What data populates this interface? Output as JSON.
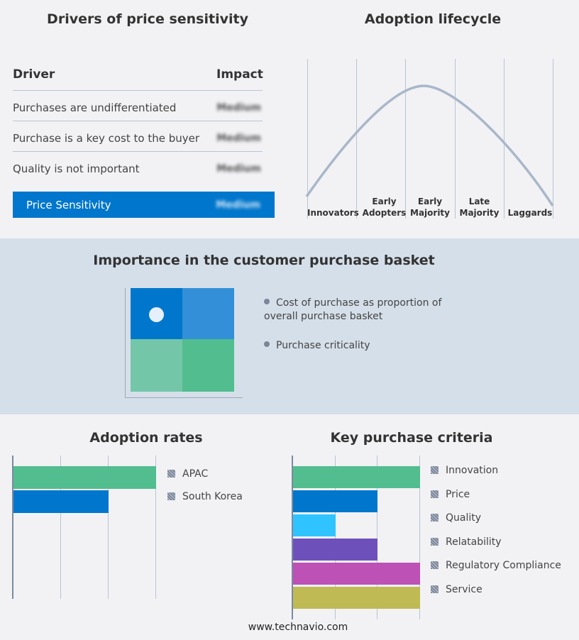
{
  "drivers": {
    "title": "Drivers of price sensitivity",
    "col_driver": "Driver",
    "col_impact": "Impact",
    "rows": [
      {
        "driver": "Purchases are undifferentiated",
        "impact": "Medium"
      },
      {
        "driver": "Purchase is a key cost to the buyer",
        "impact": "Medium"
      },
      {
        "driver": "Quality is not important",
        "impact": "Medium"
      }
    ],
    "summary": {
      "label": "Price Sensitivity",
      "impact": "Medium"
    }
  },
  "lifecycle": {
    "title": "Adoption lifecycle",
    "stages": [
      [
        "Innovators"
      ],
      [
        "Early",
        "Adopters"
      ],
      [
        "Early",
        "Majority"
      ],
      [
        "Late",
        "Majority"
      ],
      [
        "Laggards"
      ]
    ]
  },
  "basket": {
    "title": "Importance in the customer purchase basket",
    "legend": [
      "Cost of purchase as proportion of overall purchase basket",
      "Purchase criticality"
    ]
  },
  "chart_data": [
    {
      "type": "bar",
      "orientation": "horizontal",
      "title": "Adoption rates",
      "categories": [
        "APAC",
        "South Korea"
      ],
      "values": [
        3,
        2
      ],
      "xlim": [
        0,
        3
      ],
      "grid": true,
      "legend": "right",
      "colors": [
        "#52bd8f",
        "#0077cc"
      ]
    },
    {
      "type": "bar",
      "orientation": "horizontal",
      "title": "Key purchase criteria",
      "categories": [
        "Innovation",
        "Price",
        "Quality",
        "Relatability",
        "Regulatory Compliance",
        "Service"
      ],
      "values": [
        3,
        2,
        1,
        2,
        3,
        3
      ],
      "xlim": [
        0,
        3
      ],
      "grid": true,
      "legend": "right",
      "colors": [
        "#52bd8f",
        "#0077cc",
        "#2fc4ff",
        "#6e50bb",
        "#bd51b5",
        "#c0ba55"
      ]
    }
  ],
  "footer": "www.technavio.com"
}
